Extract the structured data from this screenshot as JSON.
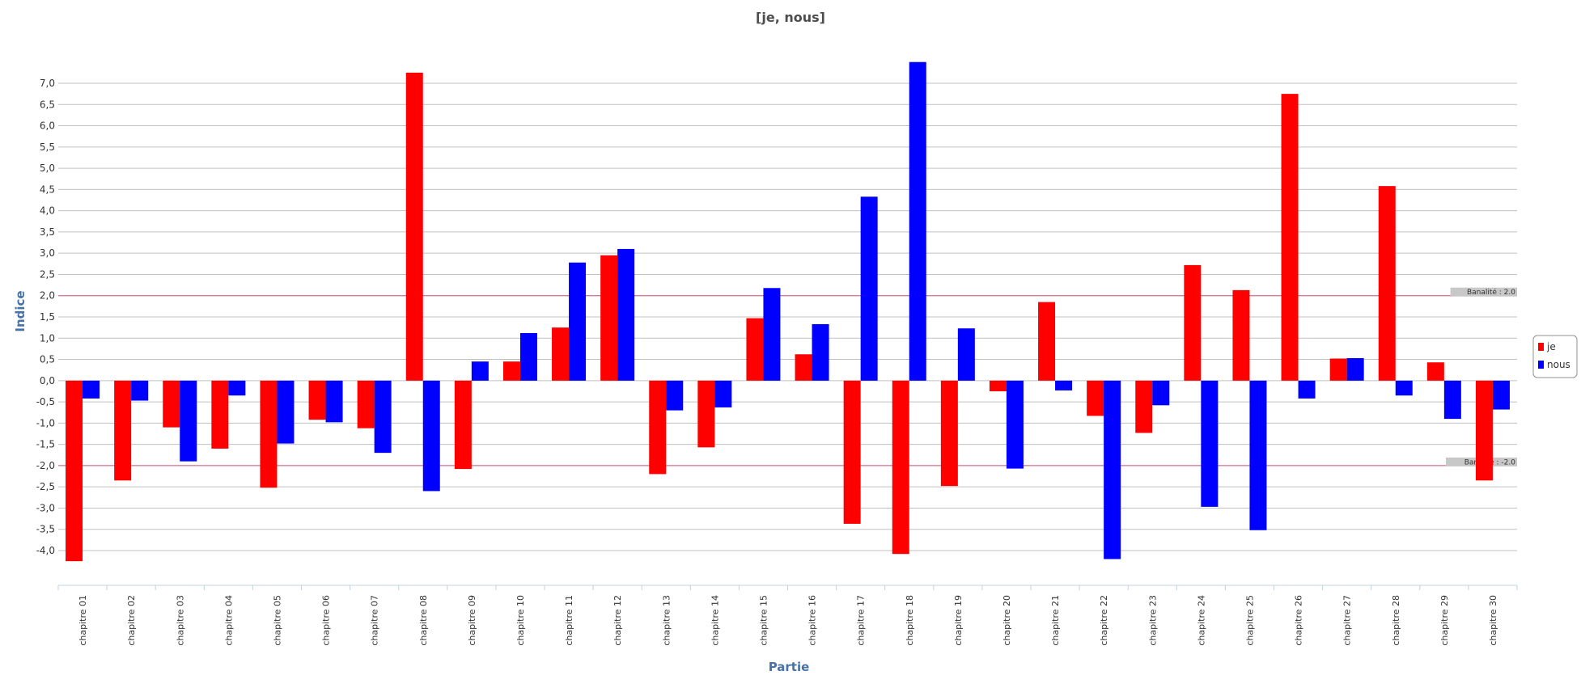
{
  "chart_data": {
    "type": "bar",
    "title": "[je, nous]",
    "xlabel": "Partie",
    "ylabel": "Indice",
    "ylim": [
      -4.0,
      7.0
    ],
    "yticks": [
      "7,0",
      "6,5",
      "6,0",
      "5,5",
      "5,0",
      "4,5",
      "4,0",
      "3,5",
      "3,0",
      "2,5",
      "2,0",
      "1,5",
      "1,0",
      "0,5",
      "0,0",
      "-0,5",
      "-1,0",
      "-1,5",
      "-2,0",
      "-2,5",
      "-3,0",
      "-3,5",
      "-4,0"
    ],
    "grid": true,
    "legend_position": "right",
    "categories": [
      "chapitre 01",
      "chapitre 02",
      "chapitre 03",
      "chapitre 04",
      "chapitre 05",
      "chapitre  06",
      "chapitre 07",
      "chapitre 08",
      "chapitre 09",
      "chapitre 10",
      "chapitre 11",
      "chapitre 12",
      "chapitre 13",
      "chapitre 14",
      "chapitre 15",
      "chapitre 16",
      "chapitre 17",
      "chapitre 18",
      "chapitre 19",
      "chapitre 20",
      "chapitre 21",
      "chapitre 22",
      "chapitre 23",
      "chapitre 24",
      "chapitre 25",
      "chapitre 26",
      "chapitre 27",
      "chapitre 28",
      "chapitre 29",
      "chapitre 30"
    ],
    "series": [
      {
        "name": "je",
        "color": "#ff0000",
        "values": [
          -4.25,
          -2.35,
          -1.1,
          -1.6,
          -2.52,
          -0.92,
          -1.12,
          7.25,
          -2.08,
          0.45,
          1.25,
          2.95,
          -2.2,
          -1.57,
          1.47,
          0.62,
          -3.37,
          -4.08,
          -2.48,
          -0.25,
          1.85,
          -0.83,
          -1.23,
          2.72,
          2.13,
          6.75,
          0.52,
          4.58,
          0.43,
          -2.35
        ]
      },
      {
        "name": "nous",
        "color": "#0000ff",
        "values": [
          -0.42,
          -0.47,
          -1.9,
          -0.35,
          -1.48,
          -0.98,
          -1.7,
          -2.6,
          0.45,
          1.12,
          2.78,
          3.1,
          -0.7,
          -0.63,
          2.18,
          1.33,
          4.33,
          7.5,
          1.23,
          -2.07,
          -0.23,
          -4.2,
          -0.58,
          -2.97,
          -3.52,
          -0.42,
          0.53,
          -0.35,
          -0.9,
          -0.68
        ]
      }
    ],
    "plot_lines": [
      {
        "value": 2.0,
        "label": "Banalité : 2.0",
        "color": "#d05a7a"
      },
      {
        "value": -2.0,
        "label": "Banalité : -2.0",
        "color": "#d05a7a"
      }
    ]
  }
}
